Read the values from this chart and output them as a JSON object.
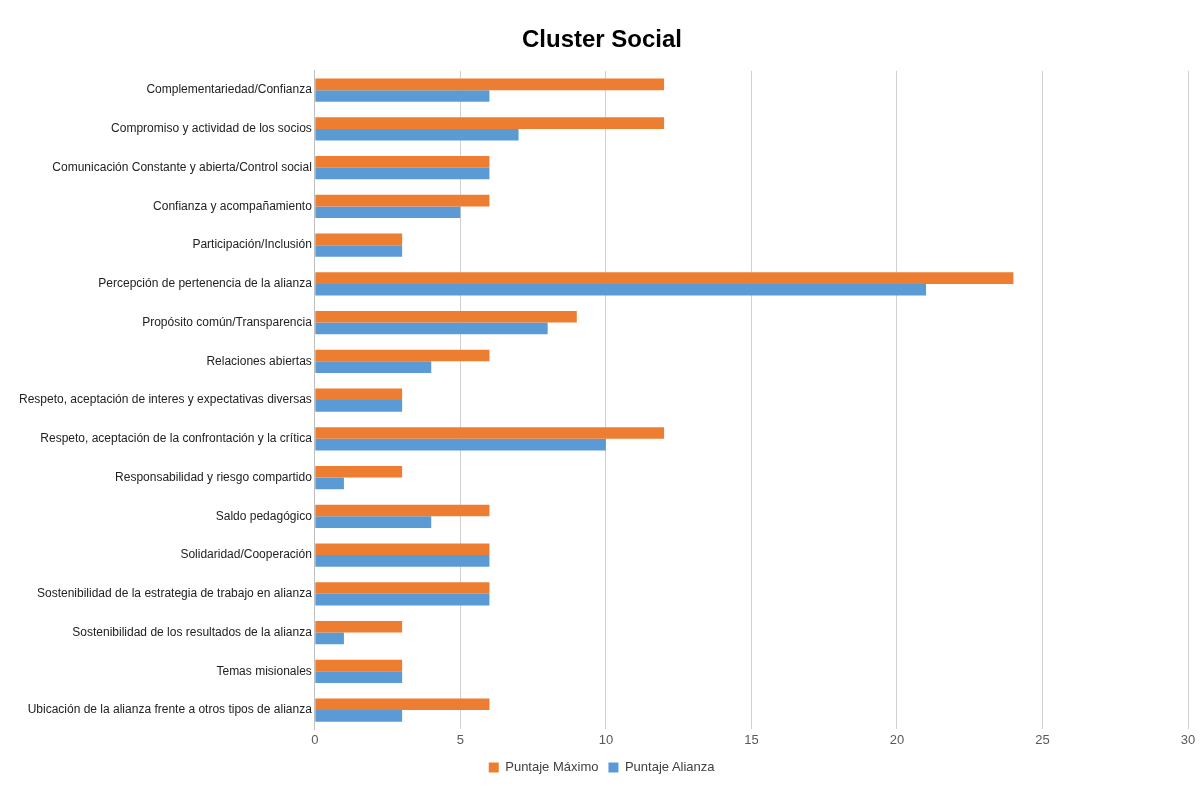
{
  "chart_data": {
    "type": "bar",
    "orientation": "horizontal",
    "title": "Cluster Social",
    "categories": [
      "Complementariedad/Confianza",
      "Compromiso y actividad de los socios",
      "Comunicación Constante y abierta/Control social",
      "Confianza y acompañamiento",
      "Participación/Inclusión",
      "Percepción de pertenencia de la alianza",
      "Propósito común/Transparencia",
      "Relaciones abiertas",
      "Respeto, aceptación de interes y expectativas diversas",
      "Respeto, aceptación de la confrontación y la crítica",
      "Responsabilidad y riesgo compartido",
      "Saldo pedagógico",
      "Solidaridad/Cooperación",
      "Sostenibilidad de la estrategia de trabajo en alianza",
      "Sostenibilidad de los resultados de la alianza",
      "Temas misionales",
      "Ubicación de la alianza frente a otros tipos de alianza"
    ],
    "series": [
      {
        "name": "Puntaje Máximo",
        "color": "#ed7d31",
        "values": [
          12,
          12,
          6,
          6,
          3,
          24,
          9,
          6,
          3,
          12,
          3,
          6,
          6,
          6,
          3,
          3,
          6
        ]
      },
      {
        "name": "Puntaje Alianza",
        "color": "#5b9bd5",
        "values": [
          6,
          7,
          6,
          5,
          3,
          21,
          8,
          4,
          3,
          10,
          1,
          4,
          6,
          6,
          1,
          3,
          3
        ]
      }
    ],
    "xlim": [
      0,
      30
    ],
    "xticks": [
      0,
      5,
      10,
      15,
      20,
      25,
      30
    ],
    "grid": "x",
    "legend": "bottom"
  }
}
